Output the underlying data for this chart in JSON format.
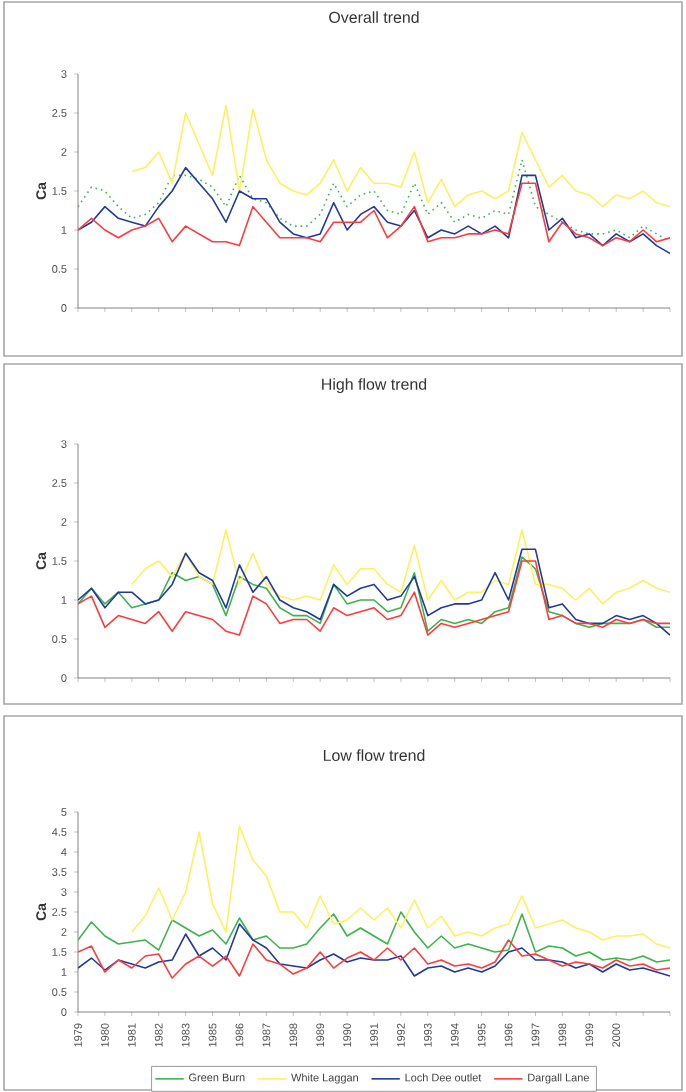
{
  "chart_data": [
    {
      "type": "line",
      "title": "Overall trend",
      "ylabel": "Ca",
      "ylim": [
        0,
        3
      ],
      "yticks": [
        0,
        0.5,
        1,
        1.5,
        2,
        2.5,
        3
      ],
      "categories": [
        "1979",
        null,
        "1980",
        null,
        "1981",
        null,
        "1982",
        null,
        "1983",
        null,
        "1985",
        null,
        "1986",
        null,
        "1987",
        null,
        "1988",
        null,
        "1989",
        null,
        "1990",
        null,
        "1991",
        null,
        "1992",
        null,
        "1993",
        null,
        "1994",
        null,
        "1995",
        null,
        "1996",
        null,
        "1997",
        null,
        "1998",
        null,
        "1999",
        null,
        "2000",
        null,
        null,
        null,
        null
      ],
      "tick_labels": "y",
      "legend": false,
      "marker": "none",
      "series": [
        {
          "color": "#3cb44b",
          "line_style": "dotted",
          "values": [
            1.3,
            1.55,
            1.5,
            1.3,
            1.15,
            1.2,
            1.35,
            1.7,
            1.7,
            1.65,
            1.55,
            1.3,
            1.7,
            1.4,
            1.35,
            1.15,
            1.05,
            1.05,
            1.2,
            1.6,
            1.3,
            1.45,
            1.5,
            1.25,
            1.2,
            1.6,
            1.2,
            1.35,
            1.1,
            1.2,
            1.15,
            1.25,
            1.2,
            1.9,
            1.3,
            1.2,
            1.1,
            1.0,
            0.95,
            0.95,
            1.0,
            0.9,
            1.05,
            0.95,
            0.85
          ]
        },
        {
          "color": "#fff060",
          "values": [
            null,
            null,
            null,
            null,
            1.75,
            1.8,
            2.0,
            1.6,
            2.5,
            2.1,
            1.7,
            2.6,
            1.5,
            2.55,
            1.9,
            1.6,
            1.5,
            1.45,
            1.6,
            1.9,
            1.5,
            1.8,
            1.6,
            1.6,
            1.55,
            2.0,
            1.35,
            1.65,
            1.3,
            1.45,
            1.5,
            1.4,
            1.5,
            2.25,
            1.9,
            1.55,
            1.7,
            1.5,
            1.45,
            1.3,
            1.45,
            1.4,
            1.5,
            1.35,
            1.3
          ]
        },
        {
          "color": "#1f3a9a",
          "values": [
            1.0,
            1.1,
            1.3,
            1.15,
            1.1,
            1.05,
            1.3,
            1.5,
            1.8,
            1.6,
            1.4,
            1.1,
            1.5,
            1.4,
            1.4,
            1.1,
            0.95,
            0.9,
            0.95,
            1.35,
            1.0,
            1.2,
            1.3,
            1.1,
            1.05,
            1.25,
            0.9,
            1.0,
            0.95,
            1.05,
            0.95,
            1.05,
            0.9,
            1.7,
            1.7,
            1.0,
            1.15,
            0.9,
            0.95,
            0.8,
            0.95,
            0.85,
            0.95,
            0.8,
            0.7
          ]
        },
        {
          "color": "#ff3b3b",
          "values": [
            1.0,
            1.15,
            1.0,
            0.9,
            1.0,
            1.05,
            1.15,
            0.85,
            1.05,
            0.95,
            0.85,
            0.85,
            0.8,
            1.3,
            1.1,
            0.9,
            0.9,
            0.9,
            0.85,
            1.1,
            1.1,
            1.1,
            1.25,
            0.9,
            1.05,
            1.3,
            0.85,
            0.9,
            0.9,
            0.95,
            0.95,
            1.0,
            0.95,
            1.6,
            1.6,
            0.85,
            1.1,
            0.95,
            0.9,
            0.8,
            0.9,
            0.85,
            1.0,
            0.85,
            0.9
          ]
        }
      ]
    },
    {
      "type": "line",
      "title": "High flow trend",
      "ylabel": "Ca",
      "ylim": [
        0,
        3
      ],
      "yticks": [
        0,
        0.5,
        1,
        1.5,
        2,
        2.5,
        3
      ],
      "categories": [
        "1979",
        null,
        "1980",
        null,
        "1981",
        null,
        "1982",
        null,
        "1983",
        null,
        "1985",
        null,
        "1986",
        null,
        "1987",
        null,
        "1988",
        null,
        "1989",
        null,
        "1990",
        null,
        "1991",
        null,
        "1992",
        null,
        "1993",
        null,
        "1994",
        null,
        "1995",
        null,
        "1996",
        null,
        "1997",
        null,
        "1998",
        null,
        "1999",
        null,
        "2000",
        null,
        null,
        null,
        null
      ],
      "tick_labels": "y",
      "legend": false,
      "marker": "none",
      "series": [
        {
          "color": "#3cb44b",
          "values": [
            0.95,
            1.15,
            0.95,
            1.1,
            0.9,
            0.95,
            1.0,
            1.35,
            1.25,
            1.3,
            1.2,
            0.8,
            1.3,
            1.2,
            1.15,
            0.9,
            0.8,
            0.8,
            0.7,
            1.2,
            0.95,
            1.0,
            1.0,
            0.85,
            0.9,
            1.35,
            0.6,
            0.75,
            0.7,
            0.75,
            0.7,
            0.85,
            0.9,
            1.55,
            1.4,
            0.85,
            0.8,
            0.7,
            0.65,
            0.7,
            0.7,
            0.7,
            0.75,
            0.65,
            0.65
          ]
        },
        {
          "color": "#fff060",
          "values": [
            null,
            null,
            null,
            null,
            1.2,
            1.4,
            1.5,
            1.3,
            1.6,
            1.3,
            1.2,
            1.9,
            1.2,
            1.6,
            1.2,
            1.05,
            1.0,
            1.05,
            1.0,
            1.45,
            1.2,
            1.4,
            1.4,
            1.2,
            1.1,
            1.7,
            1.0,
            1.25,
            1.0,
            1.1,
            1.1,
            1.25,
            1.2,
            1.9,
            1.2,
            1.2,
            1.15,
            1.0,
            1.15,
            0.95,
            1.1,
            1.15,
            1.25,
            1.15,
            1.1
          ]
        },
        {
          "color": "#1f3a9a",
          "values": [
            1.0,
            1.15,
            0.9,
            1.1,
            1.1,
            0.95,
            1.0,
            1.2,
            1.6,
            1.35,
            1.25,
            0.9,
            1.45,
            1.1,
            1.3,
            1.0,
            0.9,
            0.85,
            0.75,
            1.2,
            1.05,
            1.15,
            1.2,
            1.0,
            1.05,
            1.3,
            0.8,
            0.9,
            0.95,
            0.95,
            1.0,
            1.35,
            1.0,
            1.65,
            1.65,
            0.9,
            0.95,
            0.75,
            0.7,
            0.7,
            0.8,
            0.75,
            0.8,
            0.7,
            0.55
          ]
        },
        {
          "color": "#ff3b3b",
          "values": [
            0.95,
            1.05,
            0.65,
            0.8,
            0.75,
            0.7,
            0.85,
            0.6,
            0.85,
            0.8,
            0.75,
            0.6,
            0.55,
            1.05,
            0.95,
            0.7,
            0.75,
            0.75,
            0.6,
            0.9,
            0.8,
            0.85,
            0.9,
            0.75,
            0.8,
            1.1,
            0.55,
            0.7,
            0.65,
            0.7,
            0.75,
            0.8,
            0.85,
            1.5,
            1.5,
            0.75,
            0.8,
            0.7,
            0.7,
            0.65,
            0.75,
            0.7,
            0.75,
            0.7,
            0.7
          ]
        }
      ]
    },
    {
      "type": "line",
      "title": "Low flow trend",
      "ylabel": "Ca",
      "ylim": [
        0,
        5
      ],
      "yticks": [
        0,
        0.5,
        1,
        1.5,
        2,
        2.5,
        3,
        3.5,
        4,
        4.5,
        5
      ],
      "categories": [
        "1979",
        null,
        "1980",
        null,
        "1981",
        null,
        "1982",
        null,
        "1983",
        null,
        "1985",
        null,
        "1986",
        null,
        "1987",
        null,
        "1988",
        null,
        "1989",
        null,
        "1990",
        null,
        "1991",
        null,
        "1992",
        null,
        "1993",
        null,
        "1994",
        null,
        "1995",
        null,
        "1996",
        null,
        "1997",
        null,
        "1998",
        null,
        "1999",
        null,
        "2000",
        null,
        null,
        null,
        null
      ],
      "legend": "bottom",
      "marker": "none",
      "series": [
        {
          "name": "Green Burn",
          "color": "#3cb44b",
          "values": [
            1.8,
            2.25,
            1.9,
            1.7,
            1.75,
            1.8,
            1.55,
            2.3,
            2.1,
            1.9,
            2.05,
            1.7,
            2.35,
            1.8,
            1.9,
            1.6,
            1.6,
            1.7,
            2.1,
            2.45,
            1.9,
            2.1,
            1.9,
            1.7,
            2.5,
            2.0,
            1.6,
            1.9,
            1.6,
            1.7,
            1.6,
            1.5,
            1.55,
            2.45,
            1.5,
            1.65,
            1.6,
            1.4,
            1.5,
            1.3,
            1.35,
            1.3,
            1.4,
            1.25,
            1.3
          ]
        },
        {
          "name": "White Laggan",
          "color": "#fff060",
          "values": [
            null,
            null,
            null,
            null,
            2.0,
            2.4,
            3.1,
            2.3,
            3.0,
            4.5,
            2.7,
            2.0,
            4.65,
            3.8,
            3.4,
            2.5,
            2.5,
            2.1,
            2.9,
            2.2,
            2.3,
            2.6,
            2.3,
            2.6,
            2.1,
            2.8,
            2.1,
            2.4,
            1.9,
            2.0,
            1.9,
            2.1,
            2.2,
            2.9,
            2.1,
            2.2,
            2.3,
            2.1,
            2.0,
            1.8,
            1.9,
            1.9,
            1.95,
            1.7,
            1.6
          ]
        },
        {
          "name": "Loch Dee outlet",
          "color": "#1f3a9a",
          "values": [
            1.1,
            1.35,
            1.05,
            1.3,
            1.2,
            1.1,
            1.25,
            1.3,
            1.95,
            1.4,
            1.6,
            1.3,
            2.2,
            1.8,
            1.6,
            1.2,
            1.15,
            1.1,
            1.3,
            1.45,
            1.25,
            1.35,
            1.3,
            1.3,
            1.4,
            0.9,
            1.1,
            1.15,
            1.0,
            1.1,
            1.0,
            1.15,
            1.5,
            1.6,
            1.3,
            1.3,
            1.25,
            1.1,
            1.2,
            1.0,
            1.2,
            1.05,
            1.1,
            1.0,
            0.9
          ]
        },
        {
          "name": "Dargall Lane",
          "color": "#ff3b3b",
          "values": [
            1.5,
            1.65,
            1.0,
            1.3,
            1.1,
            1.4,
            1.45,
            0.85,
            1.2,
            1.4,
            1.15,
            1.4,
            0.9,
            1.7,
            1.3,
            1.2,
            0.95,
            1.1,
            1.5,
            1.1,
            1.35,
            1.5,
            1.3,
            1.6,
            1.3,
            1.6,
            1.2,
            1.3,
            1.15,
            1.2,
            1.1,
            1.25,
            1.8,
            1.4,
            1.45,
            1.3,
            1.15,
            1.25,
            1.2,
            1.1,
            1.3,
            1.15,
            1.2,
            1.05,
            1.1
          ]
        }
      ]
    }
  ]
}
